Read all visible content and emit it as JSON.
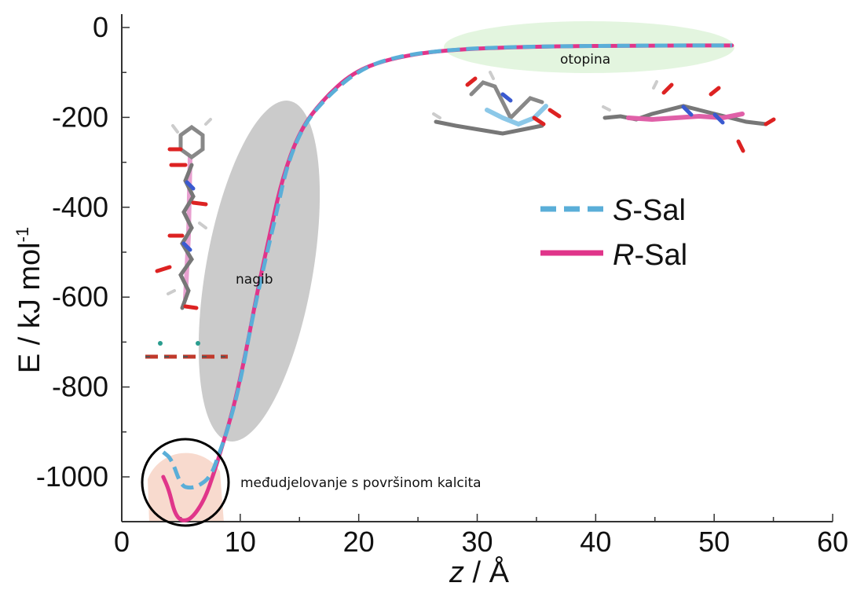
{
  "chart_data": {
    "type": "line",
    "xlabel_var": "z",
    "xlabel_unit": " / Å",
    "ylabel": "E / kJ mol",
    "ylabel_sup": "-1",
    "xlim": [
      0,
      60
    ],
    "ylim": [
      -1100,
      0
    ],
    "x_ticks": [
      0,
      10,
      20,
      30,
      40,
      50,
      60
    ],
    "y_ticks": [
      0,
      -200,
      -400,
      -600,
      -800,
      -1000
    ],
    "x_tick_labels": [
      "0",
      "10",
      "20",
      "30",
      "40",
      "50",
      "60"
    ],
    "y_tick_labels": [
      "0",
      "-200",
      "-400",
      "-600",
      "-800",
      "-1000"
    ],
    "grid": false,
    "legend_position": "right-middle",
    "series": [
      {
        "name_italic": "S",
        "name_rest": "-Sal",
        "color": "#5aaed8",
        "style": "dashed",
        "points": [
          [
            3.5,
            -945
          ],
          [
            4.2,
            -960
          ],
          [
            5.0,
            -1020
          ],
          [
            5.8,
            -1025
          ],
          [
            6.5,
            -1020
          ],
          [
            7.5,
            -1000
          ],
          [
            8.2,
            -950
          ],
          [
            9.0,
            -890
          ],
          [
            10.0,
            -790
          ],
          [
            11.0,
            -650
          ],
          [
            12.0,
            -530
          ],
          [
            13.0,
            -420
          ],
          [
            14.0,
            -300
          ],
          [
            15.5,
            -210
          ],
          [
            17.5,
            -150
          ],
          [
            20.0,
            -95
          ],
          [
            23.0,
            -65
          ],
          [
            28.0,
            -48
          ],
          [
            35.0,
            -42
          ],
          [
            45.0,
            -40
          ],
          [
            51.5,
            -40
          ]
        ]
      },
      {
        "name_italic": "R",
        "name_rest": "-Sal",
        "color": "#e0358a",
        "style": "solid",
        "points": [
          [
            3.5,
            -1000
          ],
          [
            4.0,
            -1030
          ],
          [
            4.5,
            -1085
          ],
          [
            5.2,
            -1100
          ],
          [
            6.0,
            -1090
          ],
          [
            7.0,
            -1050
          ],
          [
            7.8,
            -990
          ],
          [
            8.5,
            -930
          ],
          [
            9.5,
            -840
          ],
          [
            10.5,
            -720
          ],
          [
            11.5,
            -580
          ],
          [
            12.5,
            -460
          ],
          [
            13.5,
            -340
          ],
          [
            15.0,
            -230
          ],
          [
            17.0,
            -160
          ],
          [
            19.5,
            -100
          ],
          [
            22.5,
            -70
          ],
          [
            27.0,
            -50
          ],
          [
            35.0,
            -42
          ],
          [
            45.0,
            -40
          ],
          [
            51.5,
            -40
          ]
        ]
      }
    ],
    "annotations": {
      "solution": "otopina",
      "slope": "nagib",
      "interaction": "međudjelovanje s površinom kalcita"
    }
  }
}
